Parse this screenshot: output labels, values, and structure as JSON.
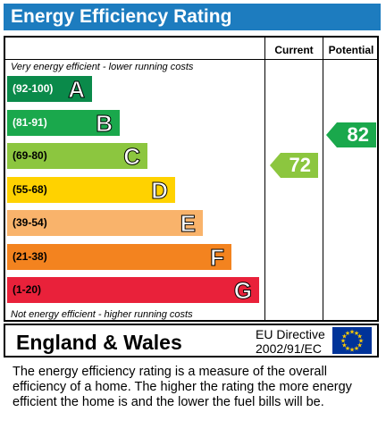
{
  "title": "Energy Efficiency Rating",
  "columns": {
    "current": "Current",
    "potential": "Potential"
  },
  "notes": {
    "top": "Very energy efficient - lower running costs",
    "bottom": "Not energy efficient - higher running costs"
  },
  "bands": [
    {
      "range": "(92-100)",
      "letter": "A",
      "color": "#0a8a4a"
    },
    {
      "range": "(81-91)",
      "letter": "B",
      "color": "#1aa84c"
    },
    {
      "range": "(69-80)",
      "letter": "C",
      "color": "#8cc63f"
    },
    {
      "range": "(55-68)",
      "letter": "D",
      "color": "#ffd200"
    },
    {
      "range": "(39-54)",
      "letter": "E",
      "color": "#f9b36b"
    },
    {
      "range": "(21-38)",
      "letter": "F",
      "color": "#f3831f"
    },
    {
      "range": "(1-20)",
      "letter": "G",
      "color": "#e9213a"
    }
  ],
  "current": {
    "value": "72",
    "color": "#8cc63f"
  },
  "potential": {
    "value": "82",
    "color": "#1aa84c"
  },
  "footer": {
    "region": "England & Wales",
    "eu_line1": "EU Directive",
    "eu_line2": "2002/91/EC"
  },
  "description": "The energy efficiency rating is a measure of the overall efficiency of a home.  The higher the rating the more energy efficient the home is and the lower the fuel bills will be."
}
